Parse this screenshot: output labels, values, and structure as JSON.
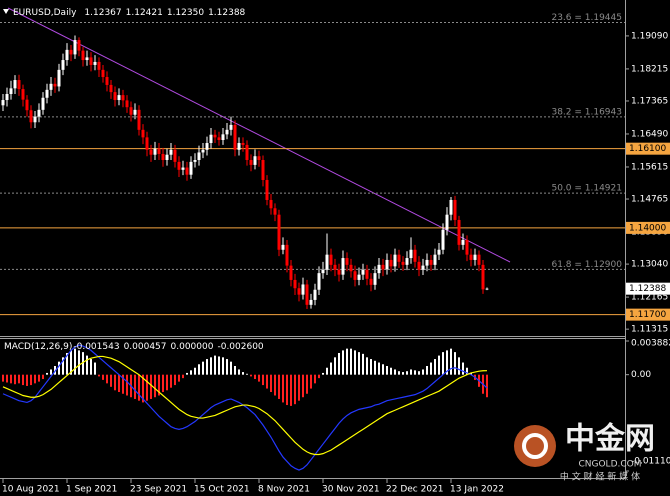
{
  "chart_data": [
    {
      "type": "candlestick",
      "symbol": "EURUSD,Daily",
      "readout": {
        "values": [
          1.12367,
          1.12421,
          1.1235,
          1.12388
        ],
        "value_labels": [
          "1.12367",
          "1.12421",
          "1.12350",
          "1.12388"
        ]
      },
      "up_color": "#ffffff",
      "down_color": "#ff0000",
      "open": [
        1.1725,
        1.1739,
        1.1755,
        1.177,
        1.1792,
        1.1768,
        1.174,
        1.1712,
        1.168,
        1.1695,
        1.1713,
        1.1745,
        1.1766,
        1.1782,
        1.1775,
        1.1819,
        1.1845,
        1.1872,
        1.186,
        1.1898,
        1.187,
        1.1845,
        1.1852,
        1.1832,
        1.184,
        1.1819,
        1.18,
        1.1779,
        1.176,
        1.1739,
        1.1752,
        1.1738,
        1.172,
        1.17,
        1.1713,
        1.166,
        1.164,
        1.1607,
        1.1594,
        1.161,
        1.1596,
        1.158,
        1.1594,
        1.1607,
        1.1575,
        1.1554,
        1.156,
        1.1541,
        1.1575,
        1.158,
        1.16,
        1.1607,
        1.1625,
        1.1647,
        1.164,
        1.1633,
        1.1648,
        1.166,
        1.1673,
        1.1607,
        1.1625,
        1.162,
        1.158,
        1.1567,
        1.159,
        1.158,
        1.1527,
        1.1474,
        1.1452,
        1.1435,
        1.1342,
        1.1355,
        1.13,
        1.1262,
        1.124,
        1.1223,
        1.125,
        1.1196,
        1.1209,
        1.1236,
        1.128,
        1.1289,
        1.1329,
        1.1302,
        1.1289,
        1.1276,
        1.132,
        1.1302,
        1.1285,
        1.1262,
        1.1276,
        1.1289,
        1.1265,
        1.1249,
        1.128,
        1.1302,
        1.129,
        1.1315,
        1.1298,
        1.1329,
        1.131,
        1.1302,
        1.132,
        1.1342,
        1.131,
        1.1289,
        1.13,
        1.1315,
        1.1302,
        1.1329,
        1.1342,
        1.1395,
        1.1435,
        1.1474,
        1.1421,
        1.1355,
        1.1368,
        1.1329,
        1.1315,
        1.1329,
        1.1302,
        1.12367
      ],
      "high": [
        1.1755,
        1.1772,
        1.179,
        1.1805,
        1.1806,
        1.178,
        1.1752,
        1.1725,
        1.171,
        1.173,
        1.176,
        1.1782,
        1.18,
        1.1798,
        1.1835,
        1.1862,
        1.189,
        1.1885,
        1.191,
        1.1905,
        1.188,
        1.187,
        1.1866,
        1.1858,
        1.1852,
        1.1832,
        1.1815,
        1.1792,
        1.1775,
        1.177,
        1.1766,
        1.1752,
        1.1735,
        1.173,
        1.1725,
        1.1675,
        1.1655,
        1.162,
        1.1628,
        1.1625,
        1.1612,
        1.161,
        1.1625,
        1.162,
        1.159,
        1.1578,
        1.1575,
        1.159,
        1.1598,
        1.1618,
        1.1625,
        1.1642,
        1.1665,
        1.166,
        1.1655,
        1.1665,
        1.1678,
        1.1695,
        1.1685,
        1.164,
        1.164,
        1.1632,
        1.1595,
        1.1608,
        1.1605,
        1.1592,
        1.154,
        1.149,
        1.1465,
        1.1448,
        1.1375,
        1.1368,
        1.1315,
        1.1278,
        1.1255,
        1.1268,
        1.1262,
        1.1225,
        1.1252,
        1.1298,
        1.131,
        1.1385,
        1.1345,
        1.1318,
        1.1305,
        1.134,
        1.1335,
        1.1318,
        1.13,
        1.1295,
        1.1305,
        1.1302,
        1.128,
        1.1298,
        1.132,
        1.1318,
        1.1332,
        1.133,
        1.1345,
        1.1342,
        1.1325,
        1.1338,
        1.1375,
        1.1355,
        1.1325,
        1.1318,
        1.1332,
        1.1328,
        1.1345,
        1.136,
        1.1412,
        1.1455,
        1.1482,
        1.1485,
        1.1432,
        1.1385,
        1.138,
        1.1345,
        1.1345,
        1.134,
        1.1315,
        1.12421
      ],
      "low": [
        1.171,
        1.1722,
        1.174,
        1.1755,
        1.175,
        1.1722,
        1.1695,
        1.1664,
        1.1665,
        1.168,
        1.17,
        1.173,
        1.175,
        1.1758,
        1.1762,
        1.1805,
        1.183,
        1.1842,
        1.1848,
        1.1855,
        1.1828,
        1.183,
        1.1815,
        1.1818,
        1.18,
        1.1785,
        1.1762,
        1.1742,
        1.1722,
        1.1725,
        1.172,
        1.1705,
        1.1682,
        1.1688,
        1.1645,
        1.1622,
        1.159,
        1.1575,
        1.158,
        1.158,
        1.1562,
        1.1565,
        1.158,
        1.156,
        1.1535,
        1.154,
        1.1525,
        1.153,
        1.156,
        1.1565,
        1.1585,
        1.1592,
        1.161,
        1.1625,
        1.1618,
        1.162,
        1.1635,
        1.1645,
        1.159,
        1.1592,
        1.1602,
        1.1565,
        1.155,
        1.1555,
        1.1562,
        1.151,
        1.146,
        1.1435,
        1.1418,
        1.1325,
        1.133,
        1.1282,
        1.1245,
        1.1222,
        1.1205,
        1.121,
        1.1185,
        1.1186,
        1.1195,
        1.1222,
        1.1265,
        1.1275,
        1.1285,
        1.1272,
        1.1258,
        1.1262,
        1.1285,
        1.1268,
        1.1245,
        1.1248,
        1.1262,
        1.1248,
        1.1232,
        1.1236,
        1.1265,
        1.1272,
        1.1276,
        1.1282,
        1.1284,
        1.1294,
        1.1286,
        1.1288,
        1.1305,
        1.1295,
        1.1272,
        1.1275,
        1.1285,
        1.1286,
        1.1288,
        1.1315,
        1.133,
        1.138,
        1.142,
        1.1405,
        1.134,
        1.1342,
        1.1312,
        1.1298,
        1.13,
        1.1285,
        1.1225,
        1.1235
      ],
      "close": [
        1.1739,
        1.1755,
        1.177,
        1.1792,
        1.1768,
        1.174,
        1.1712,
        1.168,
        1.1695,
        1.1713,
        1.1745,
        1.1766,
        1.1782,
        1.1775,
        1.1819,
        1.1845,
        1.1872,
        1.186,
        1.1898,
        1.187,
        1.1845,
        1.1852,
        1.1832,
        1.184,
        1.1819,
        1.18,
        1.1779,
        1.176,
        1.1739,
        1.1752,
        1.1738,
        1.172,
        1.17,
        1.1713,
        1.166,
        1.164,
        1.1607,
        1.1594,
        1.161,
        1.1596,
        1.158,
        1.1594,
        1.1607,
        1.1575,
        1.1554,
        1.156,
        1.1541,
        1.1575,
        1.158,
        1.16,
        1.1607,
        1.1625,
        1.1647,
        1.164,
        1.1633,
        1.1648,
        1.166,
        1.1673,
        1.1607,
        1.1625,
        1.162,
        1.158,
        1.1567,
        1.159,
        1.158,
        1.1527,
        1.1474,
        1.1452,
        1.1435,
        1.1342,
        1.1355,
        1.13,
        1.1262,
        1.124,
        1.1223,
        1.125,
        1.1196,
        1.1209,
        1.1236,
        1.128,
        1.1289,
        1.1329,
        1.1302,
        1.1289,
        1.1276,
        1.132,
        1.1302,
        1.1285,
        1.1262,
        1.1276,
        1.1289,
        1.1265,
        1.1249,
        1.128,
        1.1302,
        1.129,
        1.1315,
        1.1298,
        1.1329,
        1.131,
        1.1302,
        1.132,
        1.1342,
        1.131,
        1.1289,
        1.13,
        1.1315,
        1.1302,
        1.1329,
        1.1342,
        1.1395,
        1.1435,
        1.1474,
        1.1421,
        1.1355,
        1.1368,
        1.1329,
        1.1315,
        1.1329,
        1.1302,
        1.1237,
        1.12388
      ],
      "xlim": [
        -0.75,
        155.5
      ],
      "xticks": [
        {
          "value": 0,
          "label": "10 Aug 2021"
        },
        {
          "value": 16,
          "label": "1 Sep 2021"
        },
        {
          "value": 32,
          "label": "23 Sep 2021"
        },
        {
          "value": 48,
          "label": "15 Oct 2021"
        },
        {
          "value": 64,
          "label": "8 Nov 2021"
        },
        {
          "value": 80,
          "label": "30 Nov 2021"
        },
        {
          "value": 96,
          "label": "22 Dec 2021"
        },
        {
          "value": 112,
          "label": "13 Jan 2022"
        }
      ],
      "ylim": [
        1.1116,
        1.1983
      ],
      "yticks": [
        {
          "value": 1.1909,
          "label": "1.19090"
        },
        1.18215,
        1.17365,
        {
          "value": 1.1649,
          "label": "1.16490"
        },
        1.15615,
        1.14765,
        {
          "value": 1.1389,
          "label": "1.13890"
        },
        {
          "value": 1.1304,
          "label": "1.13040"
        },
        1.12165,
        1.11315
      ],
      "fib_color": "#8a8a8a",
      "fib_levels": [
        {
          "value": 1.19445,
          "label": "23.6 = 1.19445"
        },
        {
          "value": 1.16943,
          "label": "38.2 = 1.16943"
        },
        {
          "value": 1.14921,
          "label": "50.0 = 1.14921"
        },
        {
          "value": 1.129,
          "label": "61.8 = 1.12900"
        }
      ],
      "level_color": "#f5a540",
      "levels": [
        {
          "value": 1.161,
          "label": "1.16100"
        },
        {
          "value": 1.14,
          "label": "1.14000"
        },
        {
          "value": 1.117,
          "label": "1.11700"
        }
      ]
    },
    {
      "type": "macd",
      "label": "MACD(12,26,9)",
      "readout": {
        "values": [
          -0.001543,
          0.000457,
          0,
          -0.0026
        ],
        "value_labels": [
          "-0.001543",
          "0.000457",
          "0.000000",
          "-0.002600"
        ]
      },
      "xlim": [
        -0.75,
        155.5
      ],
      "ylim": [
        -0.011104,
        0.003882
      ],
      "yticks": [
        0.003882,
        {
          "value": 0,
          "label": "0.00"
        },
        -0.011104
      ],
      "histogram": {
        "up_color": "#ffffff",
        "down_color": "#ff2020",
        "values": [
          -0.0008,
          -0.0009,
          -0.001,
          -0.0011,
          -0.001,
          -0.0012,
          -0.0013,
          -0.0012,
          -0.001,
          -0.0008,
          -0.0005,
          0.0002,
          0.0006,
          0.001,
          0.0015,
          0.002,
          0.0025,
          0.0028,
          0.003,
          0.0028,
          0.0026,
          0.0022,
          0.0018,
          0.0014,
          -0.0002,
          -0.0006,
          -0.001,
          -0.0014,
          -0.0018,
          -0.002,
          -0.0022,
          -0.0024,
          -0.0026,
          -0.0028,
          -0.003,
          -0.0032,
          -0.003,
          -0.0028,
          -0.0026,
          -0.0024,
          -0.002,
          -0.0018,
          -0.0015,
          -0.0012,
          -0.0008,
          -0.0004,
          0.0002,
          0.0005,
          0.0008,
          0.0012,
          0.0015,
          0.0018,
          0.002,
          0.0022,
          0.0021,
          0.002,
          0.0018,
          0.0015,
          0.001,
          0.0006,
          0.0003,
          0.0001,
          -0.0002,
          -0.0005,
          -0.0008,
          -0.0012,
          -0.0016,
          -0.002,
          -0.0024,
          -0.0028,
          -0.0032,
          -0.0035,
          -0.0036,
          -0.0034,
          -0.003,
          -0.0026,
          -0.0022,
          -0.0016,
          -0.001,
          -0.0004,
          0.0002,
          0.0008,
          0.0014,
          0.002,
          0.0025,
          0.0028,
          0.003,
          0.003,
          0.0028,
          0.0026,
          0.0024,
          0.002,
          0.0018,
          0.0016,
          0.0014,
          0.0012,
          0.001,
          0.0008,
          0.0006,
          0.0004,
          0.0003,
          0.0004,
          0.0006,
          0.0005,
          0.0004,
          0.0006,
          0.001,
          0.0014,
          0.0018,
          0.0022,
          0.0026,
          0.0028,
          0.003,
          0.0026,
          0.002,
          0.0014,
          0.0008,
          0.0002,
          -0.0006,
          -0.0014,
          -0.0022,
          -0.0026
        ]
      },
      "series": [
        {
          "color": "#2438ff",
          "values": [
            -0.0022,
            -0.0024,
            -0.0026,
            -0.0028,
            -0.003,
            -0.0031,
            -0.0032,
            -0.003,
            -0.0026,
            -0.002,
            -0.0014,
            -0.0008,
            -0.0002,
            0.0004,
            0.001,
            0.0016,
            0.0022,
            0.0028,
            0.0032,
            0.0034,
            0.0033,
            0.0031,
            0.0028,
            0.0024,
            0.002,
            0.0016,
            0.0012,
            0.0008,
            0.0004,
            0,
            -0.0004,
            -0.0008,
            -0.0013,
            -0.0018,
            -0.0023,
            -0.0028,
            -0.0033,
            -0.0038,
            -0.0043,
            -0.0048,
            -0.0052,
            -0.0056,
            -0.006,
            -0.0062,
            -0.0063,
            -0.0062,
            -0.006,
            -0.0057,
            -0.0054,
            -0.005,
            -0.0046,
            -0.0042,
            -0.0038,
            -0.0035,
            -0.0033,
            -0.0031,
            -0.0029,
            -0.0028,
            -0.003,
            -0.0032,
            -0.0035,
            -0.0038,
            -0.0042,
            -0.0046,
            -0.0052,
            -0.0058,
            -0.0065,
            -0.0072,
            -0.008,
            -0.0088,
            -0.0095,
            -0.01,
            -0.0105,
            -0.0108,
            -0.011,
            -0.0108,
            -0.0104,
            -0.0098,
            -0.0092,
            -0.0086,
            -0.008,
            -0.0074,
            -0.0068,
            -0.0062,
            -0.0056,
            -0.0051,
            -0.0047,
            -0.0044,
            -0.0042,
            -0.004,
            -0.0039,
            -0.0038,
            -0.0037,
            -0.0035,
            -0.0034,
            -0.0032,
            -0.003,
            -0.0029,
            -0.0028,
            -0.0027,
            -0.0026,
            -0.0025,
            -0.0024,
            -0.0023,
            -0.0021,
            -0.0019,
            -0.0016,
            -0.0012,
            -0.0008,
            -0.0004,
            0,
            0.0004,
            0.0007,
            0.0008,
            0.0006,
            0.0004,
            0.0002,
            0,
            -0.0003,
            -0.0007,
            -0.0011,
            -0.001543
          ]
        },
        {
          "color": "#ffff00",
          "values": [
            -0.0014,
            -0.0016,
            -0.0018,
            -0.002,
            -0.0022,
            -0.0024,
            -0.0025,
            -0.0026,
            -0.0026,
            -0.0025,
            -0.0023,
            -0.002,
            -0.0017,
            -0.0013,
            -0.0009,
            -0.0005,
            -0.0001,
            0.0003,
            0.0007,
            0.0011,
            0.0014,
            0.0017,
            0.0019,
            0.002,
            0.0021,
            0.0021,
            0.002,
            0.0019,
            0.0017,
            0.0015,
            0.0012,
            0.0009,
            0.0006,
            0.0003,
            0,
            -0.0004,
            -0.0008,
            -0.0012,
            -0.0016,
            -0.002,
            -0.0024,
            -0.0028,
            -0.0032,
            -0.0036,
            -0.004,
            -0.0043,
            -0.0046,
            -0.0048,
            -0.0049,
            -0.005,
            -0.005,
            -0.0049,
            -0.0048,
            -0.0047,
            -0.0045,
            -0.0043,
            -0.0041,
            -0.0039,
            -0.0037,
            -0.0036,
            -0.0035,
            -0.0035,
            -0.0036,
            -0.0037,
            -0.0039,
            -0.0042,
            -0.0045,
            -0.0049,
            -0.0053,
            -0.0058,
            -0.0063,
            -0.0068,
            -0.0073,
            -0.0078,
            -0.0082,
            -0.0086,
            -0.0089,
            -0.0091,
            -0.0092,
            -0.0092,
            -0.0091,
            -0.0089,
            -0.0087,
            -0.0084,
            -0.0081,
            -0.0078,
            -0.0075,
            -0.0072,
            -0.0069,
            -0.0066,
            -0.0063,
            -0.006,
            -0.0057,
            -0.0054,
            -0.0051,
            -0.0048,
            -0.0045,
            -0.0043,
            -0.0041,
            -0.0039,
            -0.0037,
            -0.0035,
            -0.0033,
            -0.0031,
            -0.0029,
            -0.0027,
            -0.0025,
            -0.0023,
            -0.0021,
            -0.0019,
            -0.0016,
            -0.0013,
            -0.001,
            -0.0007,
            -0.0004,
            -0.0002,
            0,
            0.0002,
            0.0003,
            0.0004,
            0.00045,
            0.000457
          ]
        }
      ]
    }
  ],
  "watermark": {
    "brand": "中金网",
    "site": "CNGOLD.COM",
    "tagline": "中 文 财 经 新 媒 体"
  }
}
